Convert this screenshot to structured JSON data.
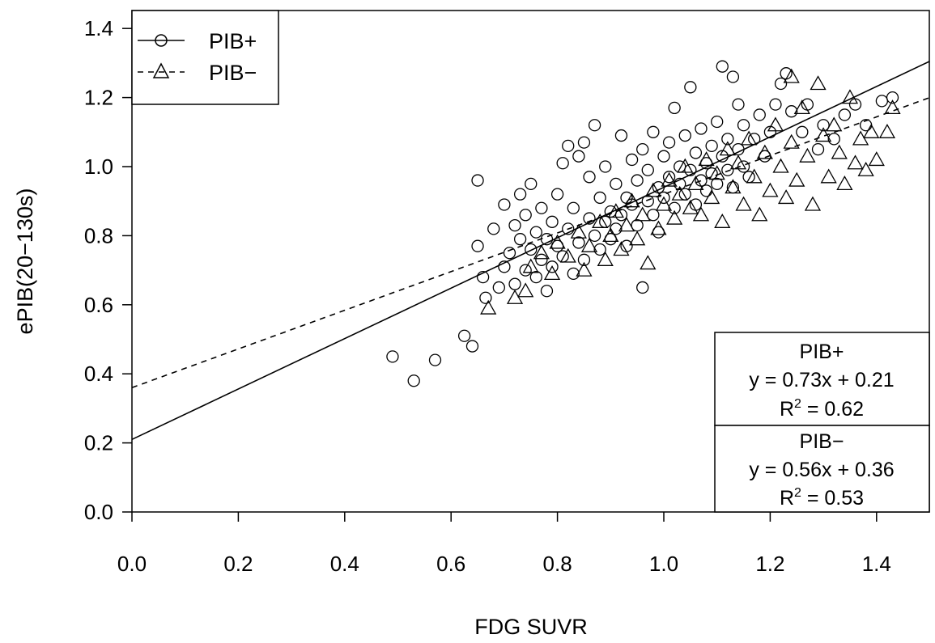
{
  "chart_data": {
    "type": "scatter",
    "xlabel": "FDG SUVR",
    "ylabel": "ePIB(20−130s)",
    "xlim": [
      0.0,
      1.5
    ],
    "ylim": [
      0.0,
      1.45
    ],
    "x_ticks": [
      "0.0",
      "0.2",
      "0.4",
      "0.6",
      "0.8",
      "1.0",
      "1.2",
      "1.4"
    ],
    "y_ticks": [
      "0.0",
      "0.2",
      "0.4",
      "0.6",
      "0.8",
      "1.0",
      "1.2",
      "1.4"
    ],
    "grid": false,
    "legend": {
      "placement": "top-left",
      "entries": [
        {
          "label": "PIB+",
          "marker": "circle",
          "line": "solid"
        },
        {
          "label": "PIB−",
          "marker": "triangle",
          "line": "dashed"
        }
      ]
    },
    "series": [
      {
        "name": "PIB+",
        "marker": "circle",
        "fit": {
          "slope": 0.73,
          "intercept": 0.21,
          "line": "solid"
        },
        "annotation": {
          "title": "PIB+",
          "equation": "y = 0.73x + 0.21",
          "r2_label": "R",
          "r2_exp": "2",
          "r2_value": " = 0.62"
        },
        "points": [
          [
            0.49,
            0.45
          ],
          [
            0.53,
            0.38
          ],
          [
            0.57,
            0.44
          ],
          [
            0.625,
            0.51
          ],
          [
            0.64,
            0.48
          ],
          [
            0.65,
            0.96
          ],
          [
            0.65,
            0.77
          ],
          [
            0.66,
            0.68
          ],
          [
            0.665,
            0.62
          ],
          [
            0.68,
            0.82
          ],
          [
            0.69,
            0.65
          ],
          [
            0.7,
            0.89
          ],
          [
            0.7,
            0.71
          ],
          [
            0.71,
            0.75
          ],
          [
            0.72,
            0.83
          ],
          [
            0.72,
            0.66
          ],
          [
            0.73,
            0.92
          ],
          [
            0.73,
            0.79
          ],
          [
            0.74,
            0.7
          ],
          [
            0.74,
            0.86
          ],
          [
            0.75,
            0.95
          ],
          [
            0.75,
            0.76
          ],
          [
            0.76,
            0.81
          ],
          [
            0.76,
            0.68
          ],
          [
            0.77,
            0.88
          ],
          [
            0.77,
            0.73
          ],
          [
            0.78,
            0.79
          ],
          [
            0.78,
            0.64
          ],
          [
            0.79,
            0.84
          ],
          [
            0.79,
            0.71
          ],
          [
            0.8,
            0.77
          ],
          [
            0.8,
            0.92
          ],
          [
            0.81,
            1.01
          ],
          [
            0.81,
            0.74
          ],
          [
            0.82,
            1.06
          ],
          [
            0.82,
            0.82
          ],
          [
            0.83,
            0.69
          ],
          [
            0.83,
            0.88
          ],
          [
            0.84,
            1.03
          ],
          [
            0.84,
            0.78
          ],
          [
            0.85,
            1.07
          ],
          [
            0.85,
            0.73
          ],
          [
            0.86,
            0.85
          ],
          [
            0.86,
            0.97
          ],
          [
            0.87,
            0.8
          ],
          [
            0.87,
            1.12
          ],
          [
            0.88,
            0.76
          ],
          [
            0.88,
            0.91
          ],
          [
            0.89,
            0.84
          ],
          [
            0.89,
            1.0
          ],
          [
            0.9,
            0.79
          ],
          [
            0.9,
            0.87
          ],
          [
            0.91,
            0.95
          ],
          [
            0.91,
            0.82
          ],
          [
            0.92,
            1.09
          ],
          [
            0.92,
            0.86
          ],
          [
            0.93,
            0.91
          ],
          [
            0.93,
            0.77
          ],
          [
            0.94,
            1.02
          ],
          [
            0.94,
            0.89
          ],
          [
            0.95,
            0.83
          ],
          [
            0.95,
            0.96
          ],
          [
            0.96,
            0.65
          ],
          [
            0.96,
            1.05
          ],
          [
            0.97,
            0.9
          ],
          [
            0.97,
            0.99
          ],
          [
            0.98,
            0.86
          ],
          [
            0.98,
            1.1
          ],
          [
            0.99,
            0.94
          ],
          [
            0.99,
            0.81
          ],
          [
            1.0,
            1.03
          ],
          [
            1.0,
            0.91
          ],
          [
            1.01,
            0.97
          ],
          [
            1.01,
            1.07
          ],
          [
            1.02,
            0.88
          ],
          [
            1.02,
            1.17
          ],
          [
            1.03,
            0.95
          ],
          [
            1.03,
            1.0
          ],
          [
            1.04,
            1.09
          ],
          [
            1.04,
            0.92
          ],
          [
            1.05,
            1.23
          ],
          [
            1.05,
            0.99
          ],
          [
            1.06,
            1.04
          ],
          [
            1.06,
            0.89
          ],
          [
            1.07,
            0.96
          ],
          [
            1.07,
            1.11
          ],
          [
            1.08,
            1.01
          ],
          [
            1.08,
            0.93
          ],
          [
            1.09,
            1.06
          ],
          [
            1.09,
            0.98
          ],
          [
            1.1,
            1.13
          ],
          [
            1.1,
            0.95
          ],
          [
            1.11,
            1.29
          ],
          [
            1.11,
            1.03
          ],
          [
            1.12,
            0.99
          ],
          [
            1.12,
            1.08
          ],
          [
            1.13,
            1.26
          ],
          [
            1.13,
            0.94
          ],
          [
            1.14,
            1.18
          ],
          [
            1.14,
            1.05
          ],
          [
            1.15,
            1.0
          ],
          [
            1.15,
            1.12
          ],
          [
            1.16,
            0.97
          ],
          [
            1.17,
            1.08
          ],
          [
            1.18,
            1.15
          ],
          [
            1.19,
            1.03
          ],
          [
            1.2,
            1.1
          ],
          [
            1.21,
            1.18
          ],
          [
            1.22,
            1.24
          ],
          [
            1.23,
            1.27
          ],
          [
            1.24,
            1.16
          ],
          [
            1.26,
            1.1
          ],
          [
            1.27,
            1.18
          ],
          [
            1.29,
            1.05
          ],
          [
            1.3,
            1.12
          ],
          [
            1.32,
            1.08
          ],
          [
            1.34,
            1.15
          ],
          [
            1.36,
            1.18
          ],
          [
            1.38,
            1.12
          ],
          [
            1.41,
            1.19
          ],
          [
            1.43,
            1.2
          ]
        ]
      },
      {
        "name": "PIB−",
        "marker": "triangle",
        "fit": {
          "slope": 0.56,
          "intercept": 0.36,
          "line": "dashed"
        },
        "annotation": {
          "title": "PIB−",
          "equation": "y = 0.56x + 0.36",
          "r2_label": "R",
          "r2_exp": "2",
          "r2_value": " = 0.53"
        },
        "points": [
          [
            0.67,
            0.59
          ],
          [
            0.72,
            0.62
          ],
          [
            0.74,
            0.64
          ],
          [
            0.75,
            0.71
          ],
          [
            0.77,
            0.75
          ],
          [
            0.79,
            0.69
          ],
          [
            0.8,
            0.78
          ],
          [
            0.82,
            0.74
          ],
          [
            0.84,
            0.81
          ],
          [
            0.85,
            0.7
          ],
          [
            0.86,
            0.77
          ],
          [
            0.88,
            0.84
          ],
          [
            0.89,
            0.73
          ],
          [
            0.9,
            0.8
          ],
          [
            0.91,
            0.87
          ],
          [
            0.92,
            0.76
          ],
          [
            0.93,
            0.83
          ],
          [
            0.94,
            0.9
          ],
          [
            0.95,
            0.79
          ],
          [
            0.96,
            0.86
          ],
          [
            0.97,
            0.72
          ],
          [
            0.98,
            0.93
          ],
          [
            0.99,
            0.82
          ],
          [
            1.0,
            0.89
          ],
          [
            1.01,
            0.96
          ],
          [
            1.02,
            0.85
          ],
          [
            1.03,
            0.92
          ],
          [
            1.04,
            1.0
          ],
          [
            1.05,
            0.88
          ],
          [
            1.06,
            0.95
          ],
          [
            1.07,
            0.86
          ],
          [
            1.08,
            1.02
          ],
          [
            1.09,
            0.91
          ],
          [
            1.1,
            0.98
          ],
          [
            1.11,
            0.84
          ],
          [
            1.12,
            1.05
          ],
          [
            1.13,
            0.94
          ],
          [
            1.14,
            1.01
          ],
          [
            1.15,
            0.89
          ],
          [
            1.16,
            1.08
          ],
          [
            1.17,
            0.97
          ],
          [
            1.18,
            0.86
          ],
          [
            1.19,
            1.04
          ],
          [
            1.2,
            0.93
          ],
          [
            1.21,
            1.12
          ],
          [
            1.22,
            1.0
          ],
          [
            1.23,
            0.91
          ],
          [
            1.24,
            1.07
          ],
          [
            1.24,
            1.26
          ],
          [
            1.25,
            0.96
          ],
          [
            1.26,
            1.17
          ],
          [
            1.27,
            1.03
          ],
          [
            1.28,
            0.89
          ],
          [
            1.29,
            1.24
          ],
          [
            1.3,
            1.09
          ],
          [
            1.31,
            0.97
          ],
          [
            1.32,
            1.12
          ],
          [
            1.33,
            1.04
          ],
          [
            1.34,
            0.95
          ],
          [
            1.35,
            1.2
          ],
          [
            1.36,
            1.01
          ],
          [
            1.37,
            1.08
          ],
          [
            1.38,
            0.99
          ],
          [
            1.39,
            1.1
          ],
          [
            1.4,
            1.02
          ],
          [
            1.42,
            1.1
          ],
          [
            1.43,
            1.17
          ]
        ]
      }
    ]
  }
}
